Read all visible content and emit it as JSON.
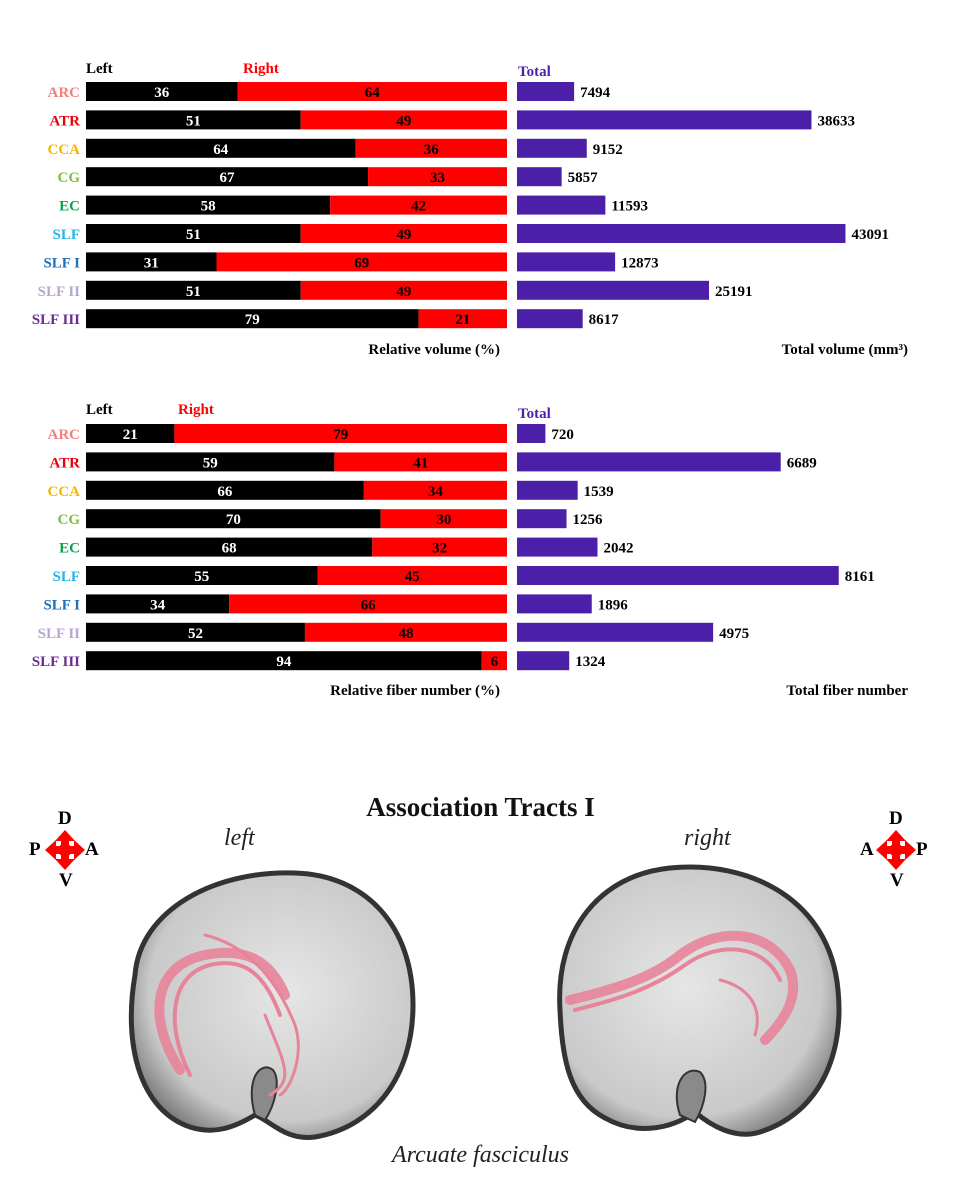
{
  "chart_data": [
    {
      "type": "bar",
      "stacked": true,
      "orientation": "horizontal",
      "categories": [
        "ARC",
        "ATR",
        "CCA",
        "CG",
        "EC",
        "SLF",
        "SLF I",
        "SLF II",
        "SLF III"
      ],
      "category_colors": [
        "#f08080",
        "#e8000b",
        "#f2b700",
        "#7ac142",
        "#0aa14d",
        "#1fb6e8",
        "#1e6fb9",
        "#b8a6cf",
        "#6a2c91"
      ],
      "series": [
        {
          "name": "Left",
          "color": "#000000",
          "values": [
            36,
            51,
            64,
            67,
            58,
            51,
            31,
            51,
            79
          ]
        },
        {
          "name": "Right",
          "color": "#ff0000",
          "values": [
            64,
            49,
            36,
            33,
            42,
            49,
            69,
            49,
            21
          ]
        }
      ],
      "xlim": [
        0,
        100
      ],
      "xlabel": "Relative volume (%)"
    },
    {
      "type": "bar",
      "orientation": "horizontal",
      "categories": [
        "ARC",
        "ATR",
        "CCA",
        "CG",
        "EC",
        "SLF",
        "SLF I",
        "SLF II",
        "SLF III"
      ],
      "series": [
        {
          "name": "Total",
          "color": "#4b1fa8",
          "values": [
            7494,
            38633,
            9152,
            5857,
            11593,
            43091,
            12873,
            25191,
            8617
          ]
        }
      ],
      "xlim": [
        0,
        45000
      ],
      "xlabel": "Total volume (mm³)"
    },
    {
      "type": "bar",
      "stacked": true,
      "orientation": "horizontal",
      "categories": [
        "ARC",
        "ATR",
        "CCA",
        "CG",
        "EC",
        "SLF",
        "SLF I",
        "SLF II",
        "SLF III"
      ],
      "category_colors": [
        "#f08080",
        "#e8000b",
        "#f2b700",
        "#7ac142",
        "#0aa14d",
        "#1fb6e8",
        "#1e6fb9",
        "#b8a6cf",
        "#6a2c91"
      ],
      "series": [
        {
          "name": "Left",
          "color": "#000000",
          "values": [
            21,
            59,
            66,
            70,
            68,
            55,
            34,
            52,
            94
          ]
        },
        {
          "name": "Right",
          "color": "#ff0000",
          "values": [
            79,
            41,
            34,
            30,
            32,
            45,
            66,
            48,
            6
          ]
        }
      ],
      "xlim": [
        0,
        100
      ],
      "xlabel": "Relative fiber number (%)"
    },
    {
      "type": "bar",
      "orientation": "horizontal",
      "categories": [
        "ARC",
        "ATR",
        "CCA",
        "CG",
        "EC",
        "SLF",
        "SLF I",
        "SLF II",
        "SLF III"
      ],
      "series": [
        {
          "name": "Total",
          "color": "#4b1fa8",
          "values": [
            720,
            6689,
            1539,
            1256,
            2042,
            8161,
            1896,
            4975,
            1324
          ]
        }
      ],
      "xlim": [
        0,
        8700
      ],
      "xlabel": "Total fiber number"
    }
  ],
  "figure": {
    "title": "Association Tracts I",
    "left_label": "left",
    "right_label": "right",
    "caption": "Arcuate fasciculus",
    "compass_left": {
      "top": "D",
      "bottom": "V",
      "left": "P",
      "right": "A"
    },
    "compass_right": {
      "top": "D",
      "bottom": "V",
      "left": "A",
      "right": "P"
    },
    "tract_color": "#e8849a",
    "arrow_color": "#ff0000"
  }
}
